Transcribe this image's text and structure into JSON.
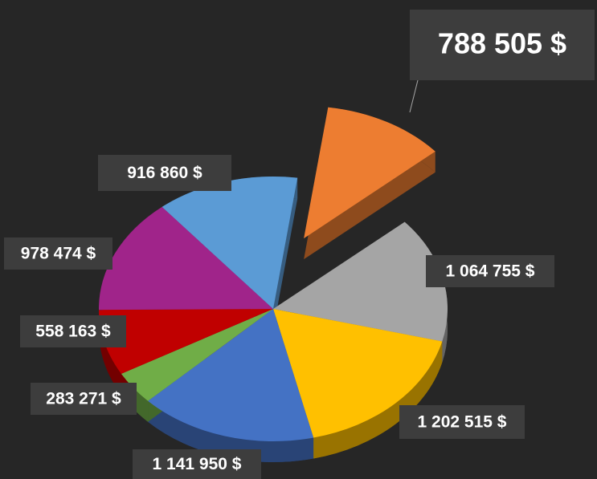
{
  "chart_data": {
    "type": "pie",
    "categories": [
      null,
      null,
      null,
      null,
      null,
      null,
      null,
      null
    ],
    "values": [
      788505,
      1064755,
      1202515,
      1141950,
      283271,
      558163,
      978474,
      916860
    ],
    "value_labels": [
      "788 505 $",
      "1 064 755 $",
      "1 202 515 $",
      "1 141 950 $",
      "283 271 $",
      "558 163 $",
      "978 474 $",
      "916 860 $"
    ],
    "colors": [
      "#ed7d31",
      "#a5a5a5",
      "#ffc000",
      "#4472c4",
      "#70ad47",
      "#c00000",
      "#a0248a",
      "#5b9bd5"
    ],
    "exploded": [
      0
    ]
  }
}
